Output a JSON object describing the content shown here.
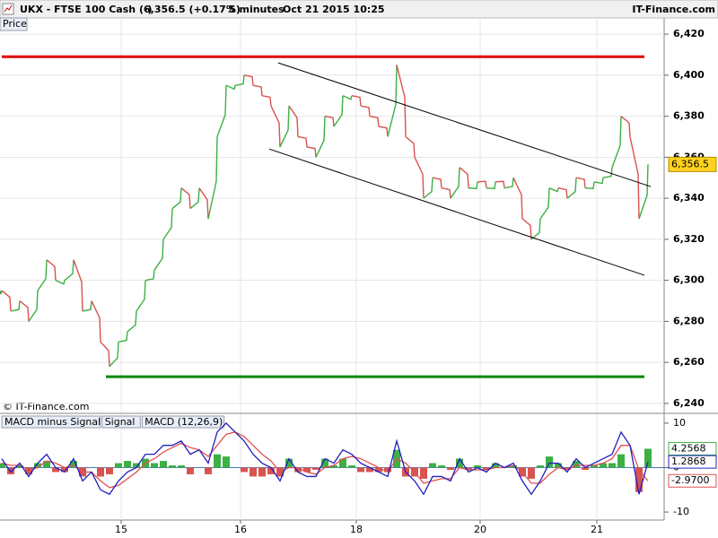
{
  "header": {
    "instrument": "UKX - FTSE 100 Cash (-)",
    "quote": "6,356.5 (+0.17%)",
    "interval": "5 minutes",
    "timestamp": "Oct 21 2015 10:25",
    "site": "IT-Finance.com"
  },
  "panel_label": "Price",
  "copyright": "© IT-Finance.com",
  "chart_data": [
    {
      "type": "line",
      "xlim": [
        0,
        148
      ],
      "xticks": [
        {
          "value": 26.6,
          "label": "15"
        },
        {
          "value": 53.2,
          "label": "16"
        },
        {
          "value": 79,
          "label": "18"
        },
        {
          "value": 106.6,
          "label": "20"
        },
        {
          "value": 132.6,
          "label": "21"
        }
      ],
      "ylim": [
        6235.6,
        6427.9
      ],
      "yticks": [
        {
          "value": 6240,
          "label": "6,240"
        },
        {
          "value": 6260,
          "label": "6,260"
        },
        {
          "value": 6280,
          "label": "6,280"
        },
        {
          "value": 6300,
          "label": "6,300"
        },
        {
          "value": 6320,
          "label": "6,320"
        },
        {
          "value": 6340,
          "label": "6,340"
        },
        {
          "value": 6360,
          "label": "6,360"
        },
        {
          "value": 6380,
          "label": "6,380"
        },
        {
          "value": 6400,
          "label": "6,400"
        },
        {
          "value": 6420,
          "label": "6,420"
        }
      ],
      "grid": true,
      "x": [
        0,
        2,
        4,
        6,
        8,
        10,
        12,
        14,
        16,
        18,
        20,
        22,
        24,
        26,
        28,
        30,
        32,
        34,
        36,
        38,
        40,
        42,
        44,
        46,
        48,
        50,
        52,
        54,
        56,
        58,
        60,
        62,
        64,
        66,
        68,
        70,
        72,
        74,
        76,
        78,
        80,
        82,
        84,
        86,
        88,
        90,
        92,
        94,
        96,
        98,
        100,
        102,
        104,
        106,
        108,
        110,
        112,
        114,
        116,
        118,
        120,
        122,
        124,
        126,
        128,
        130,
        132,
        134,
        136,
        138,
        140,
        142,
        144
      ],
      "series": [
        {
          "name": "Price",
          "color": "#3cb043",
          "down_color": "#d9534f",
          "values": [
            6295,
            6285,
            6290,
            6280,
            6295,
            6310,
            6300,
            6300,
            6310,
            6285,
            6290,
            6270,
            6258,
            6270,
            6275,
            6285,
            6300,
            6305,
            6320,
            6335,
            6345,
            6335,
            6345,
            6330,
            6370,
            6395,
            6395,
            6400,
            6395,
            6390,
            6385,
            6365,
            6385,
            6370,
            6365,
            6360,
            6380,
            6375,
            6390,
            6390,
            6385,
            6380,
            6375,
            6370,
            6405,
            6370,
            6360,
            6340,
            6350,
            6345,
            6340,
            6355,
            6345,
            6348,
            6345,
            6348,
            6345,
            6350,
            6330,
            6320,
            6330,
            6345,
            6345,
            6340,
            6350,
            6345,
            6348,
            6350,
            6355,
            6380,
            6370,
            6330,
            6356.5
          ],
          "value_labels": {
            "72": "6,356.5"
          }
        }
      ],
      "lines": [
        {
          "x": [
            0,
            143.2
          ],
          "y": [
            6409,
            6409
          ],
          "color": "#e00000",
          "width": 3
        },
        {
          "x": [
            23.2,
            143.2
          ],
          "y": [
            6253,
            6253
          ],
          "color": "#008800",
          "width": 3
        },
        {
          "x": [
            61.6,
            144.6
          ],
          "y": [
            6406,
            6345.7
          ],
          "color": "#000000",
          "width": 1
        },
        {
          "x": [
            59.6,
            143.2
          ],
          "y": [
            6364,
            6302.5
          ],
          "color": "#000000",
          "width": 1
        }
      ]
    },
    {
      "type": "macd",
      "ylim": [
        -11.8,
        11.8
      ],
      "yticks": [
        -10,
        0,
        10
      ],
      "series": [
        {
          "name": "MACD minus Signal",
          "style": "bar",
          "color": "#3cb043",
          "down_color": "#d9534f",
          "values": [
            1,
            -1.5,
            0.5,
            -1.5,
            1,
            1.5,
            -1,
            -1,
            1.5,
            -2,
            0,
            -2,
            -1.5,
            1,
            1.5,
            1,
            2,
            1,
            1.5,
            0.5,
            0.5,
            -1.5,
            0,
            -1.5,
            3,
            2.5,
            0,
            -1,
            -2,
            -2,
            -1.5,
            -2,
            2,
            -1,
            -1,
            -0.5,
            2,
            0.5,
            2,
            0.5,
            -1,
            -1,
            -1,
            -1,
            4,
            -2,
            -2,
            -2.5,
            1,
            0.5,
            -0.5,
            2,
            -0.5,
            0.5,
            -0.5,
            1,
            0,
            0.5,
            -2,
            -2.5,
            0.5,
            2.5,
            1,
            -0.5,
            1.5,
            -0.5,
            0.5,
            1,
            1,
            3,
            0,
            -5.5,
            4.2568
          ]
        },
        {
          "name": "Signal",
          "style": "line",
          "color": "#e05050",
          "values": [
            1,
            0.5,
            0.5,
            -0.5,
            0,
            1.5,
            1,
            0,
            0.5,
            -1,
            -1,
            -3,
            -4.5,
            -4,
            -2.5,
            -1,
            1,
            2,
            3.5,
            4.5,
            5.5,
            4.5,
            4,
            2.5,
            5,
            7.5,
            8,
            7,
            5,
            3,
            1.5,
            -1,
            0,
            0,
            -1,
            -1.5,
            0,
            0.5,
            2,
            2.5,
            2,
            1,
            0,
            -1,
            2,
            1,
            -1,
            -3.5,
            -3,
            -2.5,
            -2.5,
            0,
            -0.5,
            -0.5,
            -0.5,
            0,
            0,
            0.5,
            -1,
            -3.5,
            -3.5,
            -1.5,
            0,
            -0.5,
            0.5,
            0.5,
            0.5,
            1,
            2,
            5,
            5,
            -0.5,
            -2.97
          ],
          "value_labels": {
            "72": "-2.9700"
          }
        },
        {
          "name": "MACD (12,26,9)",
          "style": "line",
          "color": "#2020c0",
          "values": [
            2,
            -1,
            1,
            -2,
            1,
            3,
            0,
            -1,
            2,
            -3,
            -1,
            -5,
            -6,
            -3,
            -1,
            0,
            3,
            3,
            5,
            5,
            6,
            3,
            4,
            1,
            8,
            10,
            8,
            6,
            3,
            1,
            0,
            -3,
            2,
            -1,
            -2,
            -2,
            2,
            1,
            4,
            3,
            1,
            0,
            -1,
            -2,
            6,
            -1,
            -3,
            -6,
            -2,
            -2,
            -3,
            2,
            -1,
            0,
            -1,
            1,
            0,
            1,
            -3,
            -6,
            -3,
            1,
            1,
            -1,
            2,
            0,
            1,
            2,
            3,
            8,
            5,
            -6,
            1.2868
          ]
        }
      ]
    }
  ]
}
